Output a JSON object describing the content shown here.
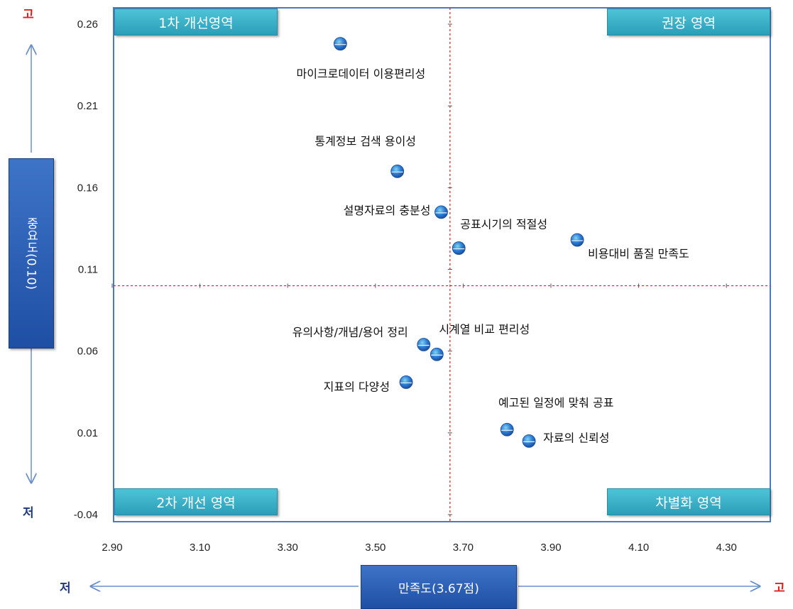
{
  "chart_data": {
    "type": "scatter",
    "xlim": [
      2.9,
      4.4
    ],
    "ylim": [
      -0.04,
      0.27
    ],
    "x_ticks": [
      "2.90",
      "3.10",
      "3.30",
      "3.50",
      "3.70",
      "3.90",
      "4.10",
      "4.30"
    ],
    "y_ticks": [
      "-0.04",
      "0.01",
      "0.06",
      "0.11",
      "0.16",
      "0.21",
      "0.26"
    ],
    "reference_x": 3.67,
    "reference_y": 0.1,
    "points": [
      {
        "label": "마이크로데이터 이용편리성",
        "x": 3.42,
        "y": 0.248
      },
      {
        "label": "통계정보 검색 용이성",
        "x": 3.55,
        "y": 0.17
      },
      {
        "label": "설명자료의 충분성",
        "x": 3.65,
        "y": 0.145
      },
      {
        "label": "공표시기의 적절성",
        "x": 3.69,
        "y": 0.123
      },
      {
        "label": "비용대비 품질 만족도",
        "x": 3.96,
        "y": 0.128
      },
      {
        "label": "유의사항/개념/용어 정리",
        "x": 3.61,
        "y": 0.064
      },
      {
        "label": "시계열 비교 편리성",
        "x": 3.64,
        "y": 0.058
      },
      {
        "label": "지표의 다양성",
        "x": 3.57,
        "y": 0.041
      },
      {
        "label": "예고된 일정에 맞춰 공표",
        "x": 3.8,
        "y": 0.012
      },
      {
        "label": "자료의 신뢰성",
        "x": 3.85,
        "y": 0.005
      }
    ],
    "grid": false
  },
  "quadrants": {
    "top_left": "1차 개선영역",
    "top_right": "권장 영역",
    "bottom_left": "2차 개선 영역",
    "bottom_right": "차별화 영역"
  },
  "axes": {
    "x_title": "만족도(3.67점)",
    "y_title": "중요도(0.10)",
    "low": "저",
    "high": "고"
  },
  "colors": {
    "frame": "#4a7bbf",
    "reference_line": "#e02020",
    "high_label": "#e02020",
    "low_label": "#1f3a7a",
    "quadrant_box": "#34b0c8",
    "axis_box": "#2a5fb5"
  }
}
